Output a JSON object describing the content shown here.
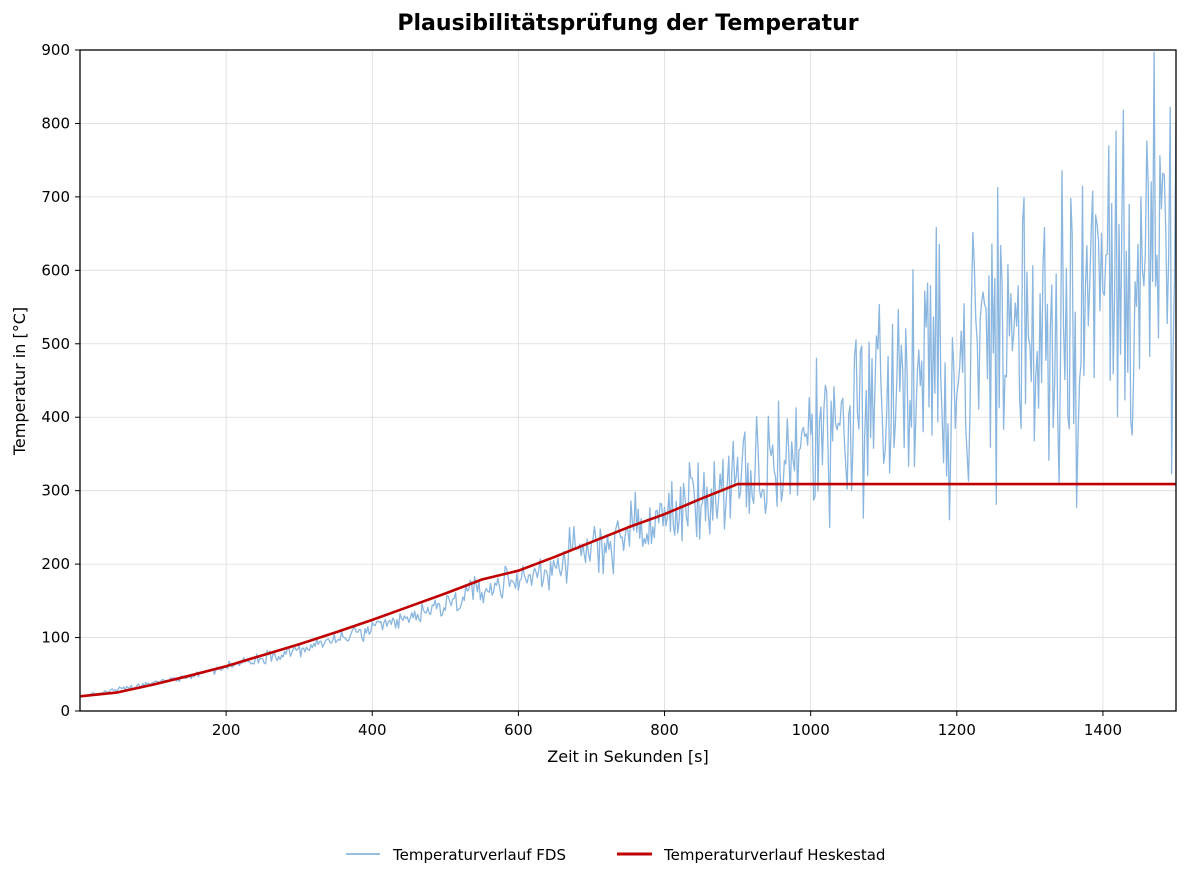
{
  "chart_data": {
    "type": "line",
    "title": "Plausibilitätsprüfung der Temperatur",
    "xlabel": "Zeit in Sekunden [s]",
    "ylabel": "Temperatur in [°C]",
    "xlim": [
      0,
      1500
    ],
    "ylim": [
      0,
      900
    ],
    "x_ticks": [
      200,
      400,
      600,
      800,
      1000,
      1200,
      1400
    ],
    "y_ticks": [
      0,
      100,
      200,
      300,
      400,
      500,
      600,
      700,
      800,
      900
    ],
    "grid": true,
    "legend_position": "bottom-center",
    "series": [
      {
        "name": "Temperaturverlauf FDS",
        "color": "#8ab6df",
        "style": "thin-noisy",
        "x": [
          0,
          25,
          50,
          75,
          100,
          125,
          150,
          175,
          200,
          225,
          250,
          275,
          300,
          325,
          350,
          375,
          400,
          425,
          450,
          475,
          500,
          525,
          550,
          575,
          600,
          625,
          650,
          675,
          700,
          725,
          750,
          775,
          800,
          825,
          850,
          875,
          900,
          925,
          950,
          975,
          1000,
          1025,
          1050,
          1075,
          1100,
          1125,
          1150,
          1175,
          1200,
          1225,
          1250,
          1275,
          1300,
          1325,
          1350,
          1375,
          1400,
          1425,
          1450,
          1475,
          1500
        ],
        "values": [
          20,
          24,
          29,
          33,
          38,
          43,
          48,
          54,
          60,
          67,
          73,
          79,
          83,
          89,
          98,
          104,
          110,
          117,
          127,
          133,
          145,
          155,
          165,
          172,
          181,
          185,
          200,
          210,
          222,
          232,
          245,
          250,
          260,
          280,
          290,
          300,
          300,
          310,
          340,
          355,
          370,
          390,
          400,
          420,
          430,
          440,
          450,
          460,
          450,
          500,
          510,
          520,
          530,
          540,
          550,
          560,
          580,
          600,
          620,
          600,
          580
        ],
        "noise_amplitude": [
          1,
          1,
          2,
          2,
          2,
          3,
          3,
          3,
          4,
          4,
          5,
          5,
          6,
          6,
          7,
          7,
          8,
          8,
          9,
          10,
          11,
          12,
          13,
          14,
          15,
          17,
          19,
          21,
          23,
          25,
          27,
          30,
          32,
          35,
          37,
          40,
          45,
          52,
          60,
          65,
          70,
          75,
          80,
          85,
          90,
          95,
          100,
          105,
          110,
          120,
          130,
          135,
          140,
          145,
          150,
          150,
          155,
          155,
          155,
          150,
          150
        ]
      },
      {
        "name": "Temperaturverlauf Heskestad",
        "color": "#c00000",
        "style": "thick",
        "x": [
          0,
          50,
          100,
          150,
          200,
          250,
          300,
          350,
          400,
          450,
          500,
          550,
          600,
          650,
          700,
          750,
          800,
          850,
          900,
          1000,
          1100,
          1200,
          1300,
          1400,
          1500
        ],
        "values": [
          20,
          25,
          36,
          48,
          61,
          76,
          91,
          107,
          124,
          142,
          160,
          179,
          191,
          210,
          230,
          250,
          268,
          289,
          309,
          309,
          309,
          309,
          309,
          309,
          309
        ]
      }
    ]
  }
}
